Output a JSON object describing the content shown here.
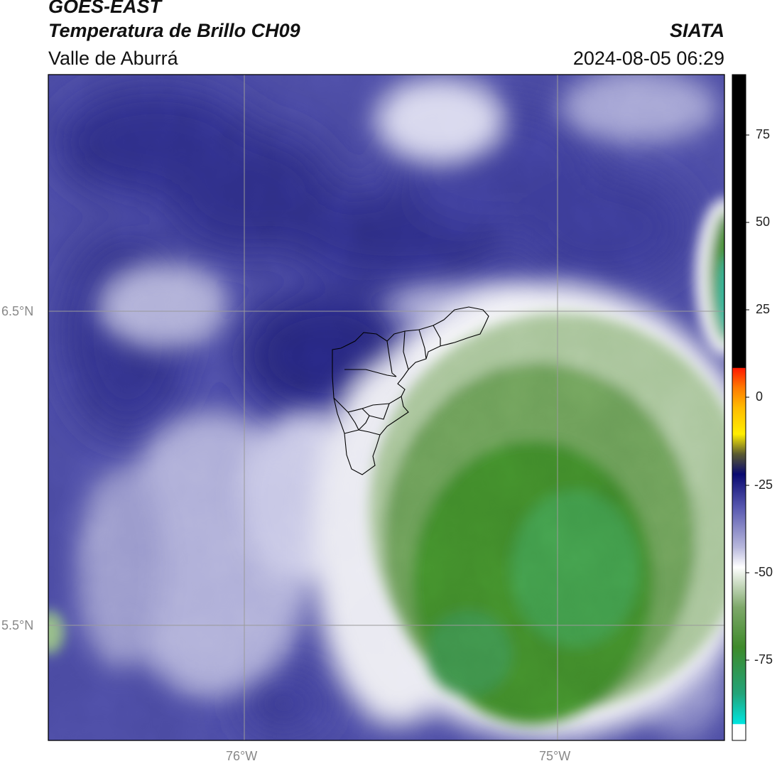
{
  "header": {
    "satellite": "GOES-EAST",
    "product": "Temperatura de Brillo CH09",
    "region": "Valle de Aburrá",
    "agency": "SIATA",
    "datetime": "2024-08-05 06:29"
  },
  "map": {
    "lat_labels": [
      "6.5°N",
      "5.5°N"
    ],
    "lon_labels": [
      "76°W",
      "75°W"
    ]
  },
  "colorbar": {
    "ticks": [
      "75",
      "50",
      "25",
      "0",
      "-25",
      "-50",
      "-75"
    ],
    "colors": {
      "black": "#000000",
      "red": "#ff2200",
      "orange": "#ff8800",
      "yellow": "#ffee00",
      "navy": "#1a1a6e",
      "blue": "#5a5ab4",
      "white": "#ffffff",
      "green": "#3f8a2a",
      "teal": "#2fb7a0",
      "cyan": "#00e5e0"
    }
  }
}
